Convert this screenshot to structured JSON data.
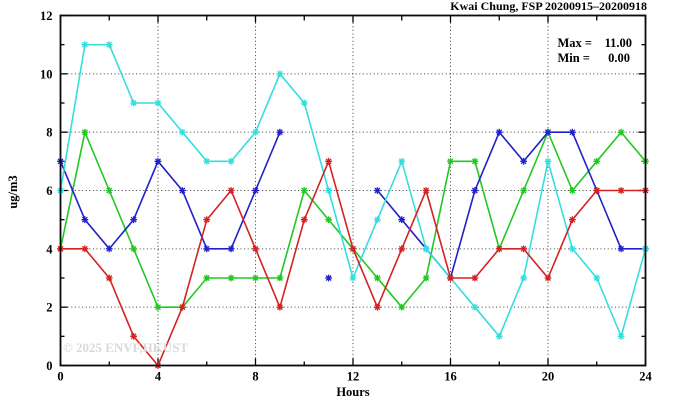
{
  "header": {
    "title": "Kwai Chung, FSP 20200915–20200918"
  },
  "legend": {
    "max_label": "Max =",
    "max_value": "11.00",
    "min_label": "Min =",
    "min_value": "0.00"
  },
  "watermark": "© 2025 ENVF,HKUST",
  "chart_data": {
    "type": "line",
    "title": "Kwai Chung, FSP 20200915–20200918",
    "xlabel": "Hours",
    "ylabel": "ug/m3",
    "xlim": [
      0,
      24
    ],
    "ylim": [
      0,
      12
    ],
    "x_ticks": [
      0,
      4,
      8,
      12,
      16,
      20,
      24
    ],
    "x_minor_step": 2,
    "y_ticks": [
      0,
      2,
      4,
      6,
      8,
      10,
      12
    ],
    "y_minor_step": 1,
    "grid": true,
    "legend_position": "top-right-inside",
    "stats": {
      "max": 11.0,
      "min": 0.0
    },
    "x": [
      0,
      1,
      2,
      3,
      4,
      5,
      6,
      7,
      8,
      9,
      10,
      11,
      12,
      13,
      14,
      15,
      16,
      17,
      18,
      19,
      20,
      21,
      22,
      23,
      24
    ],
    "series": [
      {
        "name": "series-green",
        "color": "#22c822",
        "values": [
          4,
          8,
          6,
          4,
          2,
          2,
          3,
          3,
          3,
          3,
          6,
          5,
          4,
          3,
          2,
          3,
          7,
          7,
          4,
          6,
          8,
          6,
          7,
          8,
          7
        ]
      },
      {
        "name": "series-blue",
        "color": "#2020cc",
        "values": [
          7,
          5,
          4,
          5,
          7,
          6,
          4,
          4,
          6,
          8,
          null,
          3,
          null,
          6,
          5,
          4,
          3,
          6,
          8,
          7,
          8,
          8,
          6,
          4,
          4
        ]
      },
      {
        "name": "series-cyan",
        "color": "#35dede",
        "values": [
          6,
          11,
          11,
          9,
          9,
          8,
          7,
          7,
          8,
          10,
          9,
          6,
          3,
          5,
          7,
          4,
          3,
          2,
          1,
          3,
          7,
          4,
          3,
          1,
          4
        ]
      },
      {
        "name": "series-red",
        "color": "#d42222",
        "values": [
          4,
          4,
          3,
          1,
          0,
          2,
          5,
          6,
          4,
          2,
          5,
          7,
          4,
          2,
          4,
          6,
          3,
          3,
          4,
          4,
          3,
          5,
          6,
          6,
          6
        ]
      }
    ]
  }
}
